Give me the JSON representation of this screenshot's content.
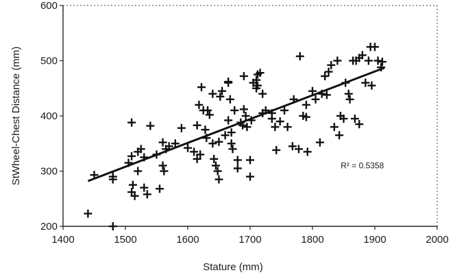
{
  "chart_data": {
    "type": "scatter",
    "title": "",
    "xlabel": "Stature (mm)",
    "ylabel": "StWheel-Chest Distance (mm)",
    "xlim": [
      1400,
      2000
    ],
    "ylim": [
      200,
      600
    ],
    "xticks": [
      "1400",
      "1500",
      "1600",
      "1700",
      "1800",
      "1900",
      "2000"
    ],
    "yticks": [
      "200",
      "300",
      "400",
      "500",
      "600"
    ],
    "grid": false,
    "marker": "+",
    "points": [
      [
        1440,
        223
      ],
      [
        1450,
        293
      ],
      [
        1480,
        200
      ],
      [
        1480,
        290
      ],
      [
        1480,
        285
      ],
      [
        1505,
        315
      ],
      [
        1510,
        327
      ],
      [
        1510,
        388
      ],
      [
        1510,
        262
      ],
      [
        1512,
        275
      ],
      [
        1515,
        255
      ],
      [
        1520,
        335
      ],
      [
        1520,
        300
      ],
      [
        1525,
        340
      ],
      [
        1530,
        325
      ],
      [
        1530,
        270
      ],
      [
        1535,
        258
      ],
      [
        1540,
        382
      ],
      [
        1550,
        330
      ],
      [
        1555,
        268
      ],
      [
        1560,
        352
      ],
      [
        1560,
        310
      ],
      [
        1562,
        300
      ],
      [
        1565,
        340
      ],
      [
        1570,
        345
      ],
      [
        1580,
        350
      ],
      [
        1590,
        378
      ],
      [
        1600,
        342
      ],
      [
        1610,
        335
      ],
      [
        1615,
        322
      ],
      [
        1615,
        383
      ],
      [
        1618,
        420
      ],
      [
        1620,
        330
      ],
      [
        1622,
        452
      ],
      [
        1625,
        410
      ],
      [
        1628,
        375
      ],
      [
        1630,
        360
      ],
      [
        1632,
        410
      ],
      [
        1635,
        402
      ],
      [
        1640,
        440
      ],
      [
        1640,
        350
      ],
      [
        1642,
        322
      ],
      [
        1645,
        310
      ],
      [
        1648,
        300
      ],
      [
        1650,
        353
      ],
      [
        1650,
        285
      ],
      [
        1652,
        435
      ],
      [
        1655,
        445
      ],
      [
        1660,
        365
      ],
      [
        1665,
        460
      ],
      [
        1665,
        392
      ],
      [
        1665,
        462
      ],
      [
        1668,
        430
      ],
      [
        1670,
        370
      ],
      [
        1670,
        350
      ],
      [
        1672,
        340
      ],
      [
        1675,
        410
      ],
      [
        1680,
        320
      ],
      [
        1680,
        305
      ],
      [
        1685,
        388
      ],
      [
        1688,
        383
      ],
      [
        1690,
        412
      ],
      [
        1690,
        472
      ],
      [
        1693,
        400
      ],
      [
        1695,
        380
      ],
      [
        1700,
        320
      ],
      [
        1700,
        290
      ],
      [
        1702,
        392
      ],
      [
        1705,
        460
      ],
      [
        1710,
        465
      ],
      [
        1710,
        450
      ],
      [
        1712,
        475
      ],
      [
        1712,
        455
      ],
      [
        1716,
        478
      ],
      [
        1720,
        405
      ],
      [
        1720,
        440
      ],
      [
        1725,
        410
      ],
      [
        1735,
        405
      ],
      [
        1735,
        395
      ],
      [
        1740,
        380
      ],
      [
        1742,
        338
      ],
      [
        1748,
        390
      ],
      [
        1755,
        410
      ],
      [
        1760,
        380
      ],
      [
        1768,
        345
      ],
      [
        1770,
        430
      ],
      [
        1778,
        340
      ],
      [
        1780,
        508
      ],
      [
        1785,
        400
      ],
      [
        1790,
        398
      ],
      [
        1790,
        420
      ],
      [
        1792,
        335
      ],
      [
        1800,
        445
      ],
      [
        1805,
        430
      ],
      [
        1812,
        352
      ],
      [
        1815,
        440
      ],
      [
        1820,
        472
      ],
      [
        1823,
        438
      ],
      [
        1826,
        480
      ],
      [
        1830,
        492
      ],
      [
        1835,
        380
      ],
      [
        1840,
        500
      ],
      [
        1843,
        365
      ],
      [
        1845,
        400
      ],
      [
        1850,
        395
      ],
      [
        1853,
        460
      ],
      [
        1858,
        440
      ],
      [
        1860,
        430
      ],
      [
        1865,
        500
      ],
      [
        1868,
        395
      ],
      [
        1870,
        500
      ],
      [
        1875,
        505
      ],
      [
        1875,
        385
      ],
      [
        1880,
        510
      ],
      [
        1885,
        460
      ],
      [
        1890,
        500
      ],
      [
        1893,
        525
      ],
      [
        1895,
        455
      ],
      [
        1900,
        525
      ],
      [
        1905,
        500
      ],
      [
        1910,
        488
      ],
      [
        1912,
        498
      ]
    ],
    "trendline": {
      "type": "linear",
      "x": [
        1440,
        1915
      ],
      "y": [
        282,
        487
      ]
    },
    "annotations": [
      {
        "text": "R² = 0.5358",
        "x": 1880,
        "y": 305
      }
    ]
  }
}
